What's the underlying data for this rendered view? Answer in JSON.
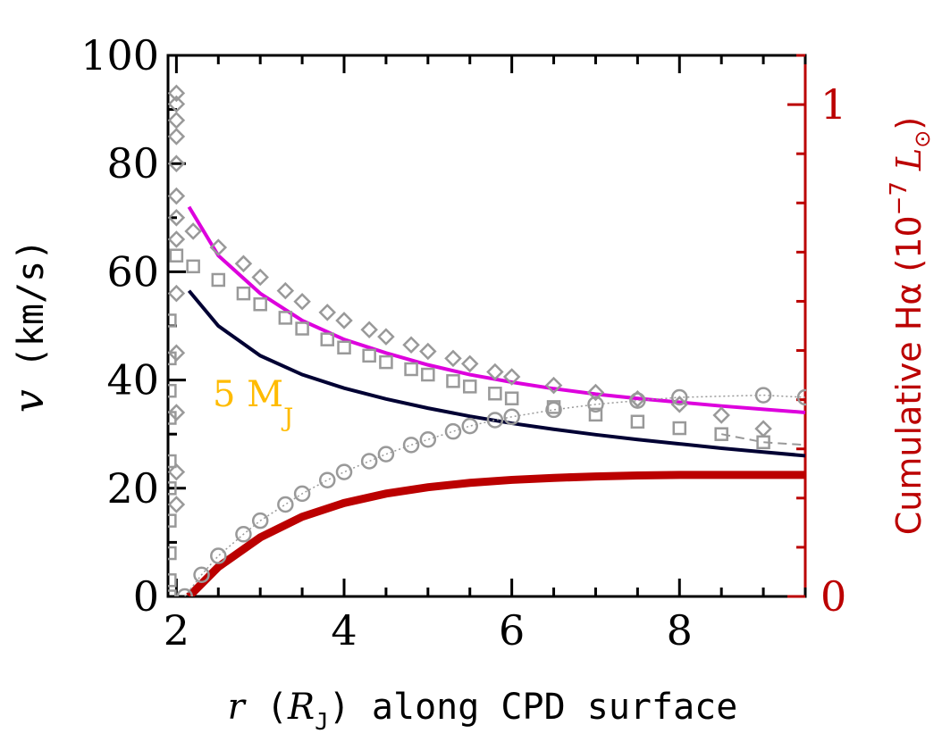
{
  "chart_data": {
    "type": "line",
    "x_axis": {
      "label_var": "r",
      "label_unit": "R",
      "label_unit_sub": "J",
      "label_rest": "along CPD surface",
      "range": [
        1.9,
        9.5
      ],
      "major_ticks": [
        2,
        4,
        6,
        8
      ],
      "tick_labels": [
        "2",
        "4",
        "6",
        "8"
      ]
    },
    "y_axis_left": {
      "label_var": "v",
      "label_unit": "(km/s)",
      "range": [
        0,
        100
      ],
      "major_ticks": [
        0,
        20,
        40,
        60,
        80,
        100
      ],
      "tick_labels": [
        "0",
        "20",
        "40",
        "60",
        "80",
        "100"
      ]
    },
    "y_axis_right": {
      "label_text": "Cumulative Hα",
      "label_unit_open": "(10",
      "label_exp": "−7",
      "label_sym": "L",
      "label_sym_sub": "⊙",
      "label_unit_close": ")",
      "range": [
        0,
        1.1
      ],
      "major_ticks": [
        0,
        1
      ],
      "tick_labels": [
        "0",
        "1"
      ],
      "color": "#bb0000"
    },
    "annotation": {
      "text": "5 M",
      "sub": "J",
      "color": "#ffbb00"
    },
    "colors": {
      "magenta": "#dd00dd",
      "navy": "#000033",
      "red": "#bb0000",
      "gray": "#999999"
    },
    "series": [
      {
        "style": "solid-magenta",
        "x": [
          2.15,
          2.5,
          3,
          3.5,
          4,
          4.5,
          5,
          5.5,
          6,
          6.5,
          7,
          7.5,
          8,
          8.5,
          9,
          9.5
        ],
        "y": [
          72,
          63,
          56,
          51,
          47.5,
          45,
          42.8,
          41,
          39.6,
          38.4,
          37.4,
          36.6,
          35.9,
          35.2,
          34.6,
          34
        ]
      },
      {
        "style": "solid-navy",
        "x": [
          2.15,
          2.5,
          3,
          3.5,
          4,
          4.5,
          5,
          5.5,
          6,
          6.5,
          7,
          7.5,
          8,
          8.5,
          9,
          9.5
        ],
        "y": [
          56.5,
          50,
          44.5,
          41,
          38.5,
          36.5,
          34.8,
          33.3,
          32,
          30.9,
          29.9,
          29,
          28.2,
          27.4,
          26.7,
          26
        ]
      },
      {
        "style": "thick-red",
        "axis": "right",
        "x": [
          2.15,
          2.5,
          3,
          3.5,
          4,
          4.5,
          5,
          5.5,
          6,
          6.5,
          7,
          7.5,
          8,
          8.5,
          9,
          9.5
        ],
        "y": [
          0,
          0.06,
          0.12,
          0.162,
          0.19,
          0.209,
          0.222,
          0.231,
          0.237,
          0.241,
          0.244,
          0.246,
          0.247,
          0.247,
          0.247,
          0.247
        ]
      },
      {
        "style": "gray-circles",
        "x": [
          2.1,
          2.3,
          2.5,
          2.8,
          3.0,
          3.3,
          3.5,
          3.8,
          4.0,
          4.3,
          4.5,
          4.8,
          5.0,
          5.3,
          5.5,
          5.8,
          6.0,
          6.5,
          7.0,
          7.5,
          8.0,
          9.0,
          9.5
        ],
        "y": [
          0,
          4,
          7.5,
          11.5,
          14,
          17,
          19,
          21.5,
          23,
          25,
          26.3,
          28,
          29,
          30.5,
          31.5,
          32.6,
          33.2,
          34.5,
          35.5,
          36.2,
          36.8,
          37.2,
          36.8
        ]
      },
      {
        "style": "gray-diamonds",
        "x": [
          2.0,
          2.2,
          2.5,
          2.8,
          3.0,
          3.3,
          3.5,
          3.8,
          4.0,
          4.3,
          4.5,
          4.8,
          5.0,
          5.3,
          5.5,
          5.8,
          6.0,
          6.5,
          7.0,
          7.5,
          8.0,
          8.5,
          9.0
        ],
        "y": [
          70,
          67.5,
          64.5,
          61.5,
          59,
          56.5,
          54.5,
          52.5,
          51,
          49.3,
          48,
          46.5,
          45.3,
          44,
          43,
          41.5,
          40.6,
          39,
          37.7,
          36.5,
          35.5,
          33.5,
          31
        ]
      },
      {
        "style": "gray-squares",
        "x": [
          2.0,
          2.2,
          2.5,
          2.8,
          3.0,
          3.3,
          3.5,
          3.8,
          4.0,
          4.3,
          4.5,
          4.8,
          5.0,
          5.3,
          5.5,
          5.8,
          6.0,
          6.5,
          7.0,
          7.5,
          8.0,
          8.5,
          9.0
        ],
        "y": [
          63,
          61,
          58.5,
          56,
          54,
          51.5,
          49.5,
          47.5,
          46,
          44.5,
          43.3,
          42,
          41,
          39.8,
          38.8,
          37.5,
          36.6,
          35,
          33.6,
          32.3,
          31.1,
          30,
          28.5
        ]
      },
      {
        "style": "gray-dash-squares",
        "x": [
          8.5,
          9.0,
          9.5
        ],
        "y": [
          30,
          28.5,
          28
        ]
      },
      {
        "style": "gray-spike-diamonds",
        "x": [
          2.0,
          2.0,
          2.0,
          2.0,
          2.0,
          2.0,
          2.0,
          2.0,
          2.0,
          2.0,
          2.0,
          2.0
        ],
        "y": [
          93,
          91,
          88,
          85,
          80,
          74,
          66,
          56,
          45,
          34,
          23,
          17
        ]
      },
      {
        "style": "gray-spike-squares",
        "x": [
          1.92,
          1.92,
          1.92,
          1.92,
          1.92,
          1.92,
          1.92,
          1.92,
          1.92,
          1.92
        ],
        "y": [
          51,
          44,
          38,
          33,
          25,
          20,
          14,
          8,
          3,
          0
        ]
      }
    ]
  }
}
